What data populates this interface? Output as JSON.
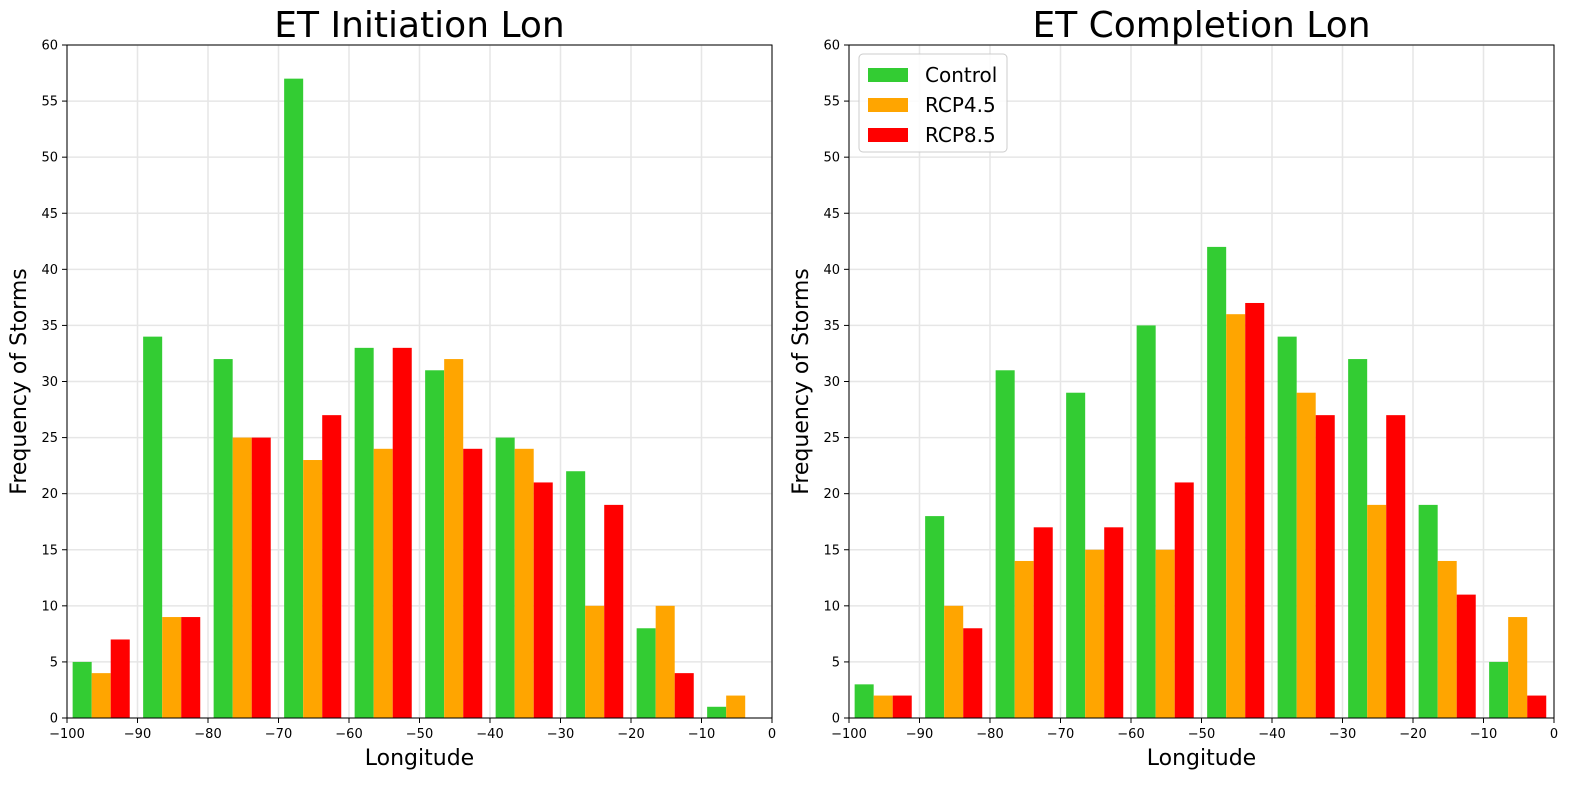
{
  "colors": {
    "Control": "#33cc33",
    "RCP4.5": "#ffa500",
    "RCP8.5": "#ff0000",
    "grid": "#e6e6e6"
  },
  "chart_data": [
    {
      "type": "bar",
      "title": "ET Initiation Lon",
      "xlabel": "Longitude",
      "ylabel": "Frequency of Storms",
      "xlim": [
        -100,
        0
      ],
      "ylim": [
        0,
        60
      ],
      "xticks": [
        -100,
        -90,
        -80,
        -70,
        -60,
        -50,
        -40,
        -30,
        -20,
        -10,
        0
      ],
      "yticks": [
        0,
        5,
        10,
        15,
        20,
        25,
        30,
        35,
        40,
        45,
        50,
        55,
        60
      ],
      "xtick_labels": [
        "−100",
        "−90",
        "−80",
        "−70",
        "−60",
        "−50",
        "−40",
        "−30",
        "−20",
        "−10",
        "0"
      ],
      "ytick_labels": [
        "0",
        "5",
        "10",
        "15",
        "20",
        "25",
        "30",
        "35",
        "40",
        "45",
        "50",
        "55",
        "60"
      ],
      "grid": true,
      "legend": null,
      "bins": [
        [
          -100,
          -90
        ],
        [
          -90,
          -80
        ],
        [
          -80,
          -70
        ],
        [
          -70,
          -60
        ],
        [
          -60,
          -50
        ],
        [
          -50,
          -40
        ],
        [
          -40,
          -30
        ],
        [
          -30,
          -20
        ],
        [
          -20,
          -10
        ],
        [
          -10,
          0
        ]
      ],
      "series": [
        {
          "name": "Control",
          "values": [
            5,
            34,
            32,
            57,
            33,
            31,
            25,
            22,
            8,
            1
          ]
        },
        {
          "name": "RCP4.5",
          "values": [
            4,
            9,
            25,
            23,
            24,
            32,
            24,
            10,
            10,
            2
          ]
        },
        {
          "name": "RCP8.5",
          "values": [
            7,
            9,
            25,
            27,
            33,
            24,
            21,
            19,
            4,
            0
          ]
        }
      ]
    },
    {
      "type": "bar",
      "title": "ET Completion Lon",
      "xlabel": "Longitude",
      "ylabel": "Frequency of Storms",
      "xlim": [
        -100,
        0
      ],
      "ylim": [
        0,
        60
      ],
      "xticks": [
        -100,
        -90,
        -80,
        -70,
        -60,
        -50,
        -40,
        -30,
        -20,
        -10,
        0
      ],
      "yticks": [
        0,
        5,
        10,
        15,
        20,
        25,
        30,
        35,
        40,
        45,
        50,
        55,
        60
      ],
      "xtick_labels": [
        "−100",
        "−90",
        "−80",
        "−70",
        "−60",
        "−50",
        "−40",
        "−30",
        "−20",
        "−10",
        "0"
      ],
      "ytick_labels": [
        "0",
        "5",
        "10",
        "15",
        "20",
        "25",
        "30",
        "35",
        "40",
        "45",
        "50",
        "55",
        "60"
      ],
      "grid": true,
      "legend": "top-left",
      "bins": [
        [
          -100,
          -90
        ],
        [
          -90,
          -80
        ],
        [
          -80,
          -70
        ],
        [
          -70,
          -60
        ],
        [
          -60,
          -50
        ],
        [
          -50,
          -40
        ],
        [
          -40,
          -30
        ],
        [
          -30,
          -20
        ],
        [
          -20,
          -10
        ],
        [
          -10,
          0
        ]
      ],
      "series": [
        {
          "name": "Control",
          "values": [
            3,
            18,
            31,
            29,
            35,
            42,
            34,
            32,
            19,
            5
          ]
        },
        {
          "name": "RCP4.5",
          "values": [
            2,
            10,
            14,
            15,
            15,
            36,
            29,
            19,
            14,
            9
          ]
        },
        {
          "name": "RCP8.5",
          "values": [
            2,
            8,
            17,
            17,
            21,
            37,
            27,
            27,
            11,
            2
          ]
        }
      ]
    }
  ]
}
